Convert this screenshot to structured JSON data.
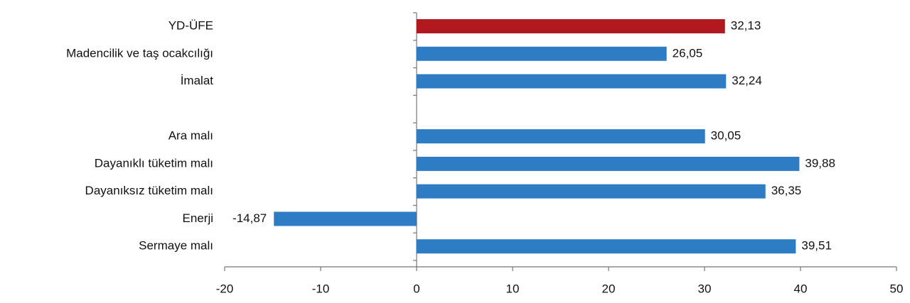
{
  "chart_data": {
    "type": "hbar",
    "categories": [
      "YD-ÜFE",
      "Madencilik ve taş ocakcılığı",
      "İmalat",
      null,
      "Ara malı",
      "Dayanıklı tüketim malı",
      "Dayanıksız tüketim malı",
      "Enerji",
      "Sermaye malı"
    ],
    "values": [
      32.13,
      26.05,
      32.24,
      null,
      30.05,
      39.88,
      36.35,
      -14.87,
      39.51
    ],
    "value_labels": [
      "32,13",
      "26,05",
      "32,24",
      null,
      "30,05",
      "39,88",
      "36,35",
      "-14,87",
      "39,51"
    ],
    "colors": [
      "#b2191e",
      "#2e7cc4",
      "#2e7cc4",
      null,
      "#2e7cc4",
      "#2e7cc4",
      "#2e7cc4",
      "#2e7cc4",
      "#2e7cc4"
    ],
    "xlim": [
      -20,
      50
    ],
    "xticks": [
      -20,
      -10,
      0,
      10,
      20,
      30,
      40,
      50
    ]
  }
}
